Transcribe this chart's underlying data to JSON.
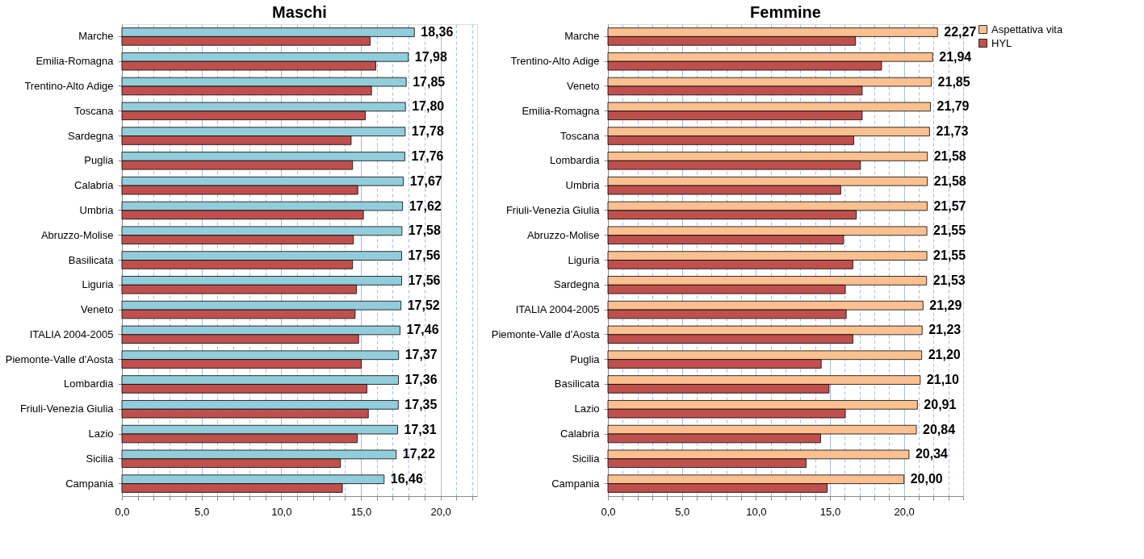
{
  "chart_data": [
    {
      "type": "bar",
      "orientation": "horizontal",
      "title": "Maschi",
      "categories": [
        "Marche",
        "Emilia-Romagna",
        "Trentino-Alto Adige",
        "Toscana",
        "Sardegna",
        "Puglia",
        "Calabria",
        "Umbria",
        "Abruzzo-Molise",
        "Basilicata",
        "Liguria",
        "Veneto",
        "ITALIA 2004-2005",
        "Piemonte-Valle d'Aosta",
        "Lombardia",
        "Friuli-Venezia Giulia",
        "Lazio",
        "Sicilia",
        "Campania"
      ],
      "series": [
        {
          "color": "#92cddc",
          "values": [
            18.36,
            17.98,
            17.85,
            17.8,
            17.78,
            17.76,
            17.67,
            17.62,
            17.58,
            17.56,
            17.56,
            17.52,
            17.46,
            17.37,
            17.36,
            17.35,
            17.31,
            17.22,
            16.46
          ],
          "value_labels": [
            "18,36",
            "17,98",
            "17,85",
            "17,80",
            "17,78",
            "17,76",
            "17,67",
            "17,62",
            "17,58",
            "17,56",
            "17,56",
            "17,52",
            "17,46",
            "17,37",
            "17,36",
            "17,35",
            "17,31",
            "17,22",
            "16,46"
          ]
        },
        {
          "color": "#c0504d",
          "values": [
            15.58,
            15.94,
            15.67,
            15.28,
            14.39,
            14.48,
            14.81,
            15.16,
            14.53,
            14.48,
            14.73,
            14.64,
            14.86,
            15.03,
            15.38,
            15.47,
            14.77,
            13.72,
            13.84
          ]
        }
      ],
      "xlim": [
        0,
        22.3
      ],
      "xticks": [
        {
          "value": 0,
          "label": "0,0"
        },
        {
          "value": 1,
          "label": null
        },
        {
          "value": 2,
          "label": null
        },
        {
          "value": 3,
          "label": null
        },
        {
          "value": 4,
          "label": null
        },
        {
          "value": 5,
          "label": "5,0"
        },
        {
          "value": 6,
          "label": null
        },
        {
          "value": 7,
          "label": null
        },
        {
          "value": 8,
          "label": null
        },
        {
          "value": 9,
          "label": null
        },
        {
          "value": 10,
          "label": "10,0"
        },
        {
          "value": 11,
          "label": null
        },
        {
          "value": 12,
          "label": null
        },
        {
          "value": 13,
          "label": null
        },
        {
          "value": 14,
          "label": null
        },
        {
          "value": 15,
          "label": "15,0"
        },
        {
          "value": 16,
          "label": null
        },
        {
          "value": 17,
          "label": null
        },
        {
          "value": 18,
          "label": null
        },
        {
          "value": 19,
          "label": null
        },
        {
          "value": 20,
          "label": "20,0"
        },
        {
          "value": 21,
          "label": null
        },
        {
          "value": 22,
          "label": null
        }
      ],
      "grid": "x"
    },
    {
      "type": "bar",
      "orientation": "horizontal",
      "title": "Femmine",
      "categories": [
        "Marche",
        "Trentino-Alto Adige",
        "Veneto",
        "Emilia-Romagna",
        "Toscana",
        "Lombardia",
        "Umbria",
        "Friuli-Venezia Giulia",
        "Abruzzo-Molise",
        "Liguria",
        "Sardegna",
        "ITALIA 2004-2005",
        "Piemonte-Valle d'Aosta",
        "Puglia",
        "Basilicata",
        "Lazio",
        "Calabria",
        "Sicilia",
        "Campania"
      ],
      "series": [
        {
          "name": "Aspettativa vita",
          "color": "#fac090",
          "values": [
            22.27,
            21.94,
            21.85,
            21.79,
            21.73,
            21.58,
            21.58,
            21.57,
            21.55,
            21.55,
            21.53,
            21.29,
            21.23,
            21.2,
            21.1,
            20.91,
            20.84,
            20.34,
            20.0
          ],
          "value_labels": [
            "22,27",
            "21,94",
            "21,85",
            "21,79",
            "21,73",
            "21,58",
            "21,58",
            "21,57",
            "21,55",
            "21,55",
            "21,53",
            "21,29",
            "21,23",
            "21,20",
            "21,10",
            "20,91",
            "20,84",
            "20,34",
            "20,00"
          ]
        },
        {
          "name": "HYL",
          "color": "#c0504d",
          "values": [
            16.73,
            18.49,
            17.18,
            17.18,
            16.61,
            17.06,
            15.73,
            16.78,
            15.92,
            16.55,
            16.04,
            16.1,
            16.55,
            14.41,
            14.94,
            16.04,
            14.37,
            13.39,
            14.82
          ]
        }
      ],
      "xlim": [
        0,
        24
      ],
      "xticks": [
        {
          "value": 0,
          "label": "0,0"
        },
        {
          "value": 1,
          "label": null
        },
        {
          "value": 2,
          "label": null
        },
        {
          "value": 3,
          "label": null
        },
        {
          "value": 4,
          "label": null
        },
        {
          "value": 5,
          "label": "5,0"
        },
        {
          "value": 6,
          "label": null
        },
        {
          "value": 7,
          "label": null
        },
        {
          "value": 8,
          "label": null
        },
        {
          "value": 9,
          "label": null
        },
        {
          "value": 10,
          "label": "10,0"
        },
        {
          "value": 11,
          "label": null
        },
        {
          "value": 12,
          "label": null
        },
        {
          "value": 13,
          "label": null
        },
        {
          "value": 14,
          "label": null
        },
        {
          "value": 15,
          "label": "15,0"
        },
        {
          "value": 16,
          "label": null
        },
        {
          "value": 17,
          "label": null
        },
        {
          "value": 18,
          "label": null
        },
        {
          "value": 19,
          "label": null
        },
        {
          "value": 20,
          "label": "20,0"
        },
        {
          "value": 21,
          "label": null
        },
        {
          "value": 22,
          "label": null
        },
        {
          "value": 23,
          "label": null
        },
        {
          "value": 24,
          "label": null
        }
      ],
      "grid": "x",
      "legend": "right"
    }
  ]
}
